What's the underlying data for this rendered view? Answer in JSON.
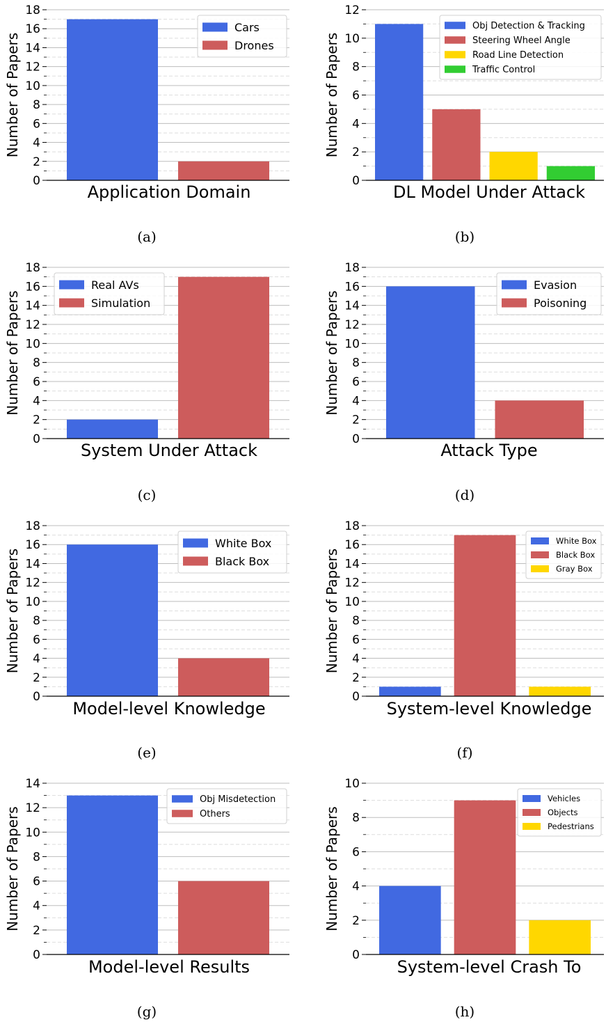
{
  "chart_data": [
    {
      "type": "bar",
      "xlabel": "Application Domain",
      "ylabel": "Number of Papers",
      "caption": "(a)",
      "ylim": [
        0,
        18
      ],
      "major_ticks": [
        0,
        2,
        4,
        6,
        8,
        10,
        12,
        14,
        16,
        18
      ],
      "legend_position": "top-right",
      "grid": true,
      "series": [
        {
          "name": "Cars",
          "value": 17,
          "color": "#4169E1"
        },
        {
          "name": "Drones",
          "value": 2,
          "color": "#CD5C5C"
        }
      ]
    },
    {
      "type": "bar",
      "xlabel": "DL Model Under Attack",
      "ylabel": "Number of Papers",
      "caption": "(b)",
      "ylim": [
        0,
        12
      ],
      "major_ticks": [
        0,
        2,
        4,
        6,
        8,
        10,
        12
      ],
      "legend_position": "top-right",
      "grid": true,
      "series": [
        {
          "name": "Obj Detection & Tracking",
          "value": 11,
          "color": "#4169E1"
        },
        {
          "name": "Steering Wheel Angle",
          "value": 5,
          "color": "#CD5C5C"
        },
        {
          "name": "Road Line Detection",
          "value": 2,
          "color": "#FFD700"
        },
        {
          "name": "Traffic Control",
          "value": 1,
          "color": "#32CD32"
        }
      ]
    },
    {
      "type": "bar",
      "xlabel": "System Under Attack",
      "ylabel": "Number of Papers",
      "caption": "(c)",
      "ylim": [
        0,
        18
      ],
      "major_ticks": [
        0,
        2,
        4,
        6,
        8,
        10,
        12,
        14,
        16,
        18
      ],
      "legend_position": "top-left",
      "grid": true,
      "series": [
        {
          "name": "Real AVs",
          "value": 2,
          "color": "#4169E1"
        },
        {
          "name": "Simulation",
          "value": 17,
          "color": "#CD5C5C"
        }
      ]
    },
    {
      "type": "bar",
      "xlabel": "Attack Type",
      "ylabel": "Number of Papers",
      "caption": "(d)",
      "ylim": [
        0,
        18
      ],
      "major_ticks": [
        0,
        2,
        4,
        6,
        8,
        10,
        12,
        14,
        16,
        18
      ],
      "legend_position": "top-right",
      "grid": true,
      "series": [
        {
          "name": "Evasion",
          "value": 16,
          "color": "#4169E1"
        },
        {
          "name": "Poisoning",
          "value": 4,
          "color": "#CD5C5C"
        }
      ]
    },
    {
      "type": "bar",
      "xlabel": "Model-level Knowledge",
      "ylabel": "Number of Papers",
      "caption": "(e)",
      "ylim": [
        0,
        18
      ],
      "major_ticks": [
        0,
        2,
        4,
        6,
        8,
        10,
        12,
        14,
        16,
        18
      ],
      "legend_position": "top-right",
      "grid": true,
      "series": [
        {
          "name": "White Box",
          "value": 16,
          "color": "#4169E1"
        },
        {
          "name": "Black Box",
          "value": 4,
          "color": "#CD5C5C"
        }
      ]
    },
    {
      "type": "bar",
      "xlabel": "System-level Knowledge",
      "ylabel": "Number of Papers",
      "caption": "(f)",
      "ylim": [
        0,
        18
      ],
      "major_ticks": [
        0,
        2,
        4,
        6,
        8,
        10,
        12,
        14,
        16,
        18
      ],
      "legend_position": "top-right",
      "grid": true,
      "series": [
        {
          "name": "White Box",
          "value": 1,
          "color": "#4169E1"
        },
        {
          "name": "Black Box",
          "value": 17,
          "color": "#CD5C5C"
        },
        {
          "name": "Gray Box",
          "value": 1,
          "color": "#FFD700"
        }
      ]
    },
    {
      "type": "bar",
      "xlabel": "Model-level Results",
      "ylabel": "Number of Papers",
      "caption": "(g)",
      "ylim": [
        0,
        14
      ],
      "major_ticks": [
        0,
        2,
        4,
        6,
        8,
        10,
        12,
        14
      ],
      "legend_position": "top-right",
      "grid": true,
      "series": [
        {
          "name": "Obj Misdetection",
          "value": 13,
          "color": "#4169E1"
        },
        {
          "name": "Others",
          "value": 6,
          "color": "#CD5C5C"
        }
      ]
    },
    {
      "type": "bar",
      "xlabel": "System-level Crash To",
      "ylabel": "Number of Papers",
      "caption": "(h)",
      "ylim": [
        0,
        10
      ],
      "major_ticks": [
        0,
        2,
        4,
        6,
        8,
        10
      ],
      "legend_position": "top-right",
      "grid": true,
      "series": [
        {
          "name": "Vehicles",
          "value": 4,
          "color": "#4169E1"
        },
        {
          "name": "Objects",
          "value": 9,
          "color": "#CD5C5C"
        },
        {
          "name": "Pedestrians",
          "value": 2,
          "color": "#FFD700"
        }
      ]
    }
  ]
}
